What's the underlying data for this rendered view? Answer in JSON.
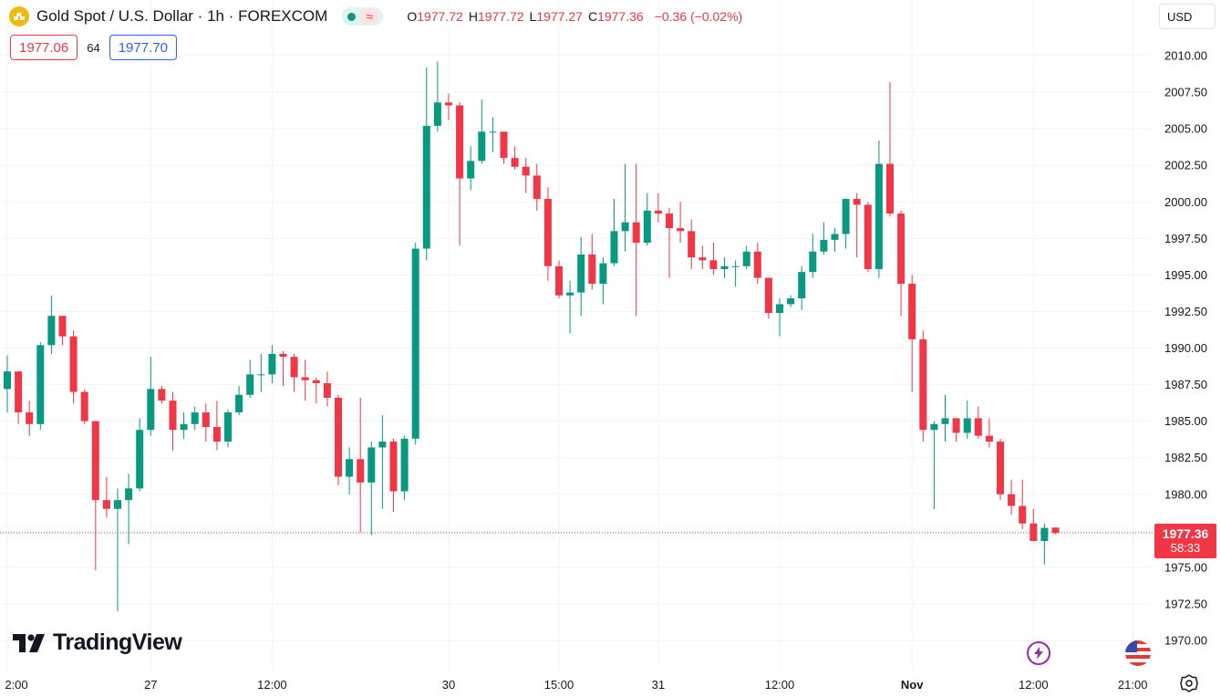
{
  "header": {
    "title": "Gold Spot / U.S. Dollar · 1h · FOREXCOM",
    "ohlc": {
      "o_key": "O",
      "o_val": "1977.72",
      "h_key": "H",
      "h_val": "1977.72",
      "l_key": "L",
      "l_val": "1977.27",
      "c_key": "C",
      "c_val": "1977.36",
      "change": "−0.36 (−0.02%)"
    },
    "status_wave": "≈"
  },
  "quotes": {
    "sell": "1977.06",
    "spread": "64",
    "buy": "1977.70"
  },
  "currency": "USD",
  "last_price": {
    "price": "1977.36",
    "countdown": "58:33"
  },
  "logo": {
    "text": "TradingView"
  },
  "icons": {
    "symbol": "gold-bars-icon",
    "bolt": "lightning-icon",
    "flag": "us-flag-icon",
    "settings": "gear-icon"
  },
  "colors": {
    "up": "#089981",
    "down": "#f23645",
    "grid": "#f0f3fa",
    "axis_text": "#131722",
    "price_line": "#f23645"
  },
  "chart_data": {
    "type": "candlestick",
    "title": "Gold Spot / U.S. Dollar · 1h · FOREXCOM",
    "ylim": [
      1969.0,
      2013.0
    ],
    "y_ticks": [
      "2010.00",
      "2007.50",
      "2005.00",
      "2002.50",
      "2000.00",
      "1997.50",
      "1995.00",
      "1992.50",
      "1990.00",
      "1987.50",
      "1985.00",
      "1982.50",
      "1980.00",
      "1977.50",
      "1975.00",
      "1972.50",
      "1970.00"
    ],
    "x_ticks": [
      {
        "label": "2:00",
        "bar": 0
      },
      {
        "label": "27",
        "bar": 13
      },
      {
        "label": "12:00",
        "bar": 24
      },
      {
        "label": "30",
        "bar": 40
      },
      {
        "label": "15:00",
        "bar": 50
      },
      {
        "label": "31",
        "bar": 59
      },
      {
        "label": "12:00",
        "bar": 70
      },
      {
        "label": "Nov",
        "bar": 82,
        "bold": true
      },
      {
        "label": "12:00",
        "bar": 93
      },
      {
        "label": "21:00",
        "bar": 102
      }
    ],
    "grid": true,
    "last_price": 1977.36,
    "ohlc": [
      [
        1987.2,
        1989.5,
        1985.6,
        1988.4
      ],
      [
        1988.4,
        1988.4,
        1984.8,
        1985.6
      ],
      [
        1985.6,
        1986.4,
        1984.0,
        1984.8
      ],
      [
        1984.8,
        1990.4,
        1984.4,
        1990.2
      ],
      [
        1990.2,
        1993.6,
        1989.6,
        1992.2
      ],
      [
        1992.2,
        1992.2,
        1990.2,
        1990.8
      ],
      [
        1990.8,
        1991.2,
        1986.2,
        1987.0
      ],
      [
        1987.0,
        1987.2,
        1984.8,
        1985.0
      ],
      [
        1985.0,
        1985.0,
        1974.8,
        1979.6
      ],
      [
        1979.6,
        1981.2,
        1978.4,
        1979.0
      ],
      [
        1979.0,
        1980.4,
        1972.0,
        1979.6
      ],
      [
        1979.6,
        1981.4,
        1976.6,
        1980.4
      ],
      [
        1980.4,
        1985.2,
        1980.2,
        1984.4
      ],
      [
        1984.4,
        1989.4,
        1984.0,
        1987.2
      ],
      [
        1987.2,
        1987.4,
        1986.2,
        1986.4
      ],
      [
        1986.4,
        1987.0,
        1983.0,
        1984.4
      ],
      [
        1984.4,
        1985.6,
        1983.8,
        1984.8
      ],
      [
        1984.8,
        1986.0,
        1984.4,
        1985.6
      ],
      [
        1985.6,
        1986.2,
        1983.6,
        1984.6
      ],
      [
        1984.6,
        1986.4,
        1983.0,
        1983.6
      ],
      [
        1983.6,
        1985.8,
        1983.2,
        1985.6
      ],
      [
        1985.6,
        1987.4,
        1985.4,
        1986.8
      ],
      [
        1986.8,
        1989.2,
        1986.6,
        1988.2
      ],
      [
        1988.2,
        1989.6,
        1987.0,
        1988.2
      ],
      [
        1988.2,
        1990.2,
        1987.6,
        1989.6
      ],
      [
        1989.6,
        1989.8,
        1987.4,
        1989.4
      ],
      [
        1989.4,
        1989.6,
        1987.0,
        1988.0
      ],
      [
        1988.0,
        1989.2,
        1986.4,
        1987.8
      ],
      [
        1987.8,
        1988.0,
        1986.2,
        1987.6
      ],
      [
        1987.6,
        1988.4,
        1986.0,
        1986.6
      ],
      [
        1986.6,
        1986.8,
        1980.6,
        1981.2
      ],
      [
        1981.2,
        1983.2,
        1980.0,
        1982.4
      ],
      [
        1982.4,
        1986.6,
        1977.4,
        1980.8
      ],
      [
        1980.8,
        1983.6,
        1977.2,
        1983.2
      ],
      [
        1983.2,
        1985.4,
        1979.0,
        1983.6
      ],
      [
        1983.6,
        1983.8,
        1978.8,
        1980.2
      ],
      [
        1980.2,
        1984.0,
        1979.6,
        1983.8
      ],
      [
        1983.8,
        1997.2,
        1983.4,
        1996.8
      ],
      [
        1996.8,
        2009.2,
        1996.0,
        2005.2
      ],
      [
        2005.2,
        2009.6,
        2004.8,
        2006.8
      ],
      [
        2006.8,
        2007.4,
        2005.6,
        2006.6
      ],
      [
        2006.6,
        2006.8,
        1997.0,
        2001.6
      ],
      [
        2001.6,
        2003.8,
        2000.8,
        2002.8
      ],
      [
        2002.8,
        2007.0,
        2002.6,
        2004.8
      ],
      [
        2004.8,
        2005.8,
        2003.4,
        2004.8
      ],
      [
        2004.8,
        2004.8,
        2002.6,
        2003.0
      ],
      [
        2003.0,
        2003.8,
        2002.2,
        2002.4
      ],
      [
        2002.4,
        2003.0,
        2000.6,
        2001.8
      ],
      [
        2001.8,
        2002.6,
        1999.4,
        2000.2
      ],
      [
        2000.2,
        2001.0,
        1994.6,
        1995.6
      ],
      [
        1995.6,
        1996.0,
        1993.4,
        1993.6
      ],
      [
        1993.6,
        1994.6,
        1991.0,
        1993.8
      ],
      [
        1993.8,
        1997.6,
        1992.2,
        1996.4
      ],
      [
        1996.4,
        1997.8,
        1994.0,
        1994.4
      ],
      [
        1994.4,
        1996.2,
        1993.0,
        1995.8
      ],
      [
        1995.8,
        2000.2,
        1995.6,
        1998.0
      ],
      [
        1998.0,
        2002.6,
        1996.6,
        1998.6
      ],
      [
        1998.6,
        2002.6,
        1992.2,
        1997.2
      ],
      [
        1997.2,
        2000.6,
        1997.0,
        1999.4
      ],
      [
        1999.4,
        2000.6,
        1998.6,
        1999.2
      ],
      [
        1999.2,
        1999.6,
        1994.8,
        1998.2
      ],
      [
        1998.2,
        2000.0,
        1997.2,
        1998.0
      ],
      [
        1998.0,
        1998.8,
        1995.4,
        1996.2
      ],
      [
        1996.2,
        1997.0,
        1995.4,
        1996.0
      ],
      [
        1996.0,
        1997.2,
        1995.0,
        1995.4
      ],
      [
        1995.4,
        1996.2,
        1994.8,
        1995.6
      ],
      [
        1995.6,
        1996.0,
        1994.2,
        1995.6
      ],
      [
        1995.6,
        1997.0,
        1995.4,
        1996.6
      ],
      [
        1996.6,
        1997.2,
        1994.4,
        1994.8
      ],
      [
        1994.8,
        1994.8,
        1992.0,
        1992.4
      ],
      [
        1992.4,
        1993.4,
        1990.8,
        1993.0
      ],
      [
        1993.0,
        1993.6,
        1992.8,
        1993.4
      ],
      [
        1993.4,
        1995.6,
        1992.6,
        1995.2
      ],
      [
        1995.2,
        1997.8,
        1994.8,
        1996.6
      ],
      [
        1996.6,
        1998.6,
        1996.4,
        1997.4
      ],
      [
        1997.4,
        1998.2,
        1996.6,
        1997.8
      ],
      [
        1997.8,
        2000.2,
        1996.8,
        2000.2
      ],
      [
        2000.2,
        2000.6,
        1996.2,
        1999.8
      ],
      [
        1999.8,
        2000.0,
        1995.2,
        1995.4
      ],
      [
        1995.4,
        2004.2,
        1994.8,
        2002.6
      ],
      [
        2002.6,
        2008.2,
        1999.0,
        1999.2
      ],
      [
        1999.2,
        1999.4,
        1992.2,
        1994.4
      ],
      [
        1994.4,
        1995.0,
        1987.0,
        1990.6
      ],
      [
        1990.6,
        1991.2,
        1983.6,
        1984.4
      ],
      [
        1984.4,
        1985.0,
        1979.0,
        1984.8
      ],
      [
        1984.8,
        1986.8,
        1983.6,
        1985.2
      ],
      [
        1985.2,
        1985.2,
        1983.6,
        1984.2
      ],
      [
        1984.2,
        1986.4,
        1983.8,
        1985.2
      ],
      [
        1985.2,
        1986.0,
        1983.8,
        1984.0
      ],
      [
        1984.0,
        1985.2,
        1983.2,
        1983.6
      ],
      [
        1983.6,
        1983.8,
        1979.6,
        1980.0
      ],
      [
        1980.0,
        1981.0,
        1978.6,
        1979.2
      ],
      [
        1979.2,
        1981.0,
        1977.6,
        1978.0
      ],
      [
        1978.0,
        1979.0,
        1976.8,
        1976.8
      ],
      [
        1976.8,
        1978.0,
        1975.2,
        1977.7
      ],
      [
        1977.72,
        1977.72,
        1977.27,
        1977.36
      ]
    ]
  }
}
